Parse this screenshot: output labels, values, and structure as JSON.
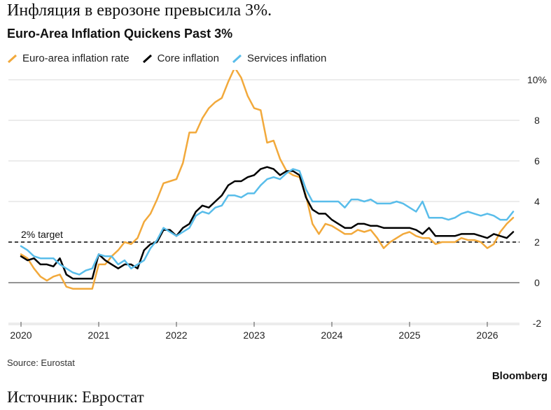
{
  "header": {
    "ru_title": "Инфляция в еврозоне превысила 3%.",
    "en_title": "Euro-Area Inflation Quickens Past 3%"
  },
  "footer": {
    "source": "Source: Eurostat",
    "brand": "Bloomberg",
    "ru_source": "Источник: Евростат"
  },
  "colors": {
    "headline": "#F2A93B",
    "core": "#000000",
    "services": "#59BDEA",
    "grid": "#d9d9d9",
    "axis": "#555555"
  },
  "chart_data": {
    "type": "line",
    "title": "Euro-Area Inflation Quickens Past 3%",
    "xlabel": "",
    "ylabel": "",
    "x_start": "2020-01",
    "x_step": "month",
    "x_ticks": [
      "2020",
      "2021",
      "2022",
      "2023",
      "2024",
      "2025",
      "2026"
    ],
    "y_ticks": [
      "10%",
      "8",
      "6",
      "4",
      "2",
      "0",
      "-2"
    ],
    "ylim": [
      -2,
      10
    ],
    "grid": true,
    "legend_position": "top-left",
    "annotations": [
      {
        "text": "2% target",
        "y": 2
      }
    ],
    "series": [
      {
        "name": "Euro-area inflation rate",
        "color": "#F2A93B",
        "values": [
          1.4,
          1.2,
          0.7,
          0.3,
          0.1,
          0.3,
          0.4,
          -0.2,
          -0.3,
          -0.3,
          -0.3,
          -0.3,
          0.9,
          0.9,
          1.3,
          1.6,
          2.0,
          1.9,
          2.2,
          3.0,
          3.4,
          4.1,
          4.9,
          5.0,
          5.1,
          5.9,
          7.4,
          7.4,
          8.1,
          8.6,
          8.9,
          9.1,
          9.9,
          10.6,
          10.1,
          9.2,
          8.6,
          8.5,
          6.9,
          7.0,
          6.1,
          5.5,
          5.3,
          5.2,
          4.3,
          2.9,
          2.4,
          2.9,
          2.8,
          2.6,
          2.4,
          2.4,
          2.6,
          2.5,
          2.6,
          2.2,
          1.7,
          2.0,
          2.2,
          2.4,
          2.5,
          2.3,
          2.2,
          2.2,
          1.9,
          2.0,
          2.0,
          2.0,
          2.2,
          2.1,
          2.1,
          2.0,
          1.7,
          1.9,
          2.5,
          2.9,
          3.2
        ]
      },
      {
        "name": "Core inflation",
        "color": "#000000",
        "values": [
          1.3,
          1.1,
          1.2,
          0.9,
          0.9,
          0.8,
          1.2,
          0.4,
          0.2,
          0.2,
          0.2,
          0.2,
          1.4,
          1.1,
          0.9,
          0.7,
          0.9,
          0.9,
          0.7,
          1.6,
          1.9,
          2.0,
          2.6,
          2.6,
          2.3,
          2.7,
          2.9,
          3.5,
          3.8,
          3.7,
          4.0,
          4.3,
          4.8,
          5.0,
          5.0,
          5.2,
          5.3,
          5.6,
          5.7,
          5.6,
          5.3,
          5.5,
          5.5,
          5.3,
          4.2,
          3.6,
          3.4,
          3.4,
          3.1,
          2.9,
          2.7,
          2.7,
          2.9,
          2.9,
          2.8,
          2.8,
          2.7,
          2.7,
          2.7,
          2.7,
          2.7,
          2.6,
          2.4,
          2.7,
          2.3,
          2.3,
          2.3,
          2.3,
          2.4,
          2.4,
          2.4,
          2.3,
          2.2,
          2.4,
          2.3,
          2.2,
          2.5
        ]
      },
      {
        "name": "Services inflation",
        "color": "#59BDEA",
        "values": [
          1.8,
          1.6,
          1.3,
          1.2,
          1.2,
          1.2,
          0.9,
          0.7,
          0.5,
          0.4,
          0.6,
          0.7,
          1.4,
          1.3,
          1.3,
          0.9,
          1.1,
          0.7,
          0.9,
          1.1,
          1.7,
          2.1,
          2.7,
          2.5,
          2.3,
          2.5,
          2.7,
          3.3,
          3.5,
          3.4,
          3.7,
          3.8,
          4.3,
          4.3,
          4.2,
          4.4,
          4.4,
          4.8,
          5.1,
          5.2,
          5.1,
          5.4,
          5.6,
          5.5,
          4.6,
          4.0,
          4.0,
          4.0,
          4.0,
          4.0,
          3.7,
          4.1,
          4.1,
          4.0,
          4.1,
          3.9,
          3.9,
          3.9,
          4.0,
          3.9,
          3.7,
          3.5,
          4.0,
          3.2,
          3.2,
          3.2,
          3.1,
          3.2,
          3.4,
          3.5,
          3.4,
          3.3,
          3.4,
          3.3,
          3.1,
          3.1,
          3.5
        ]
      }
    ]
  }
}
